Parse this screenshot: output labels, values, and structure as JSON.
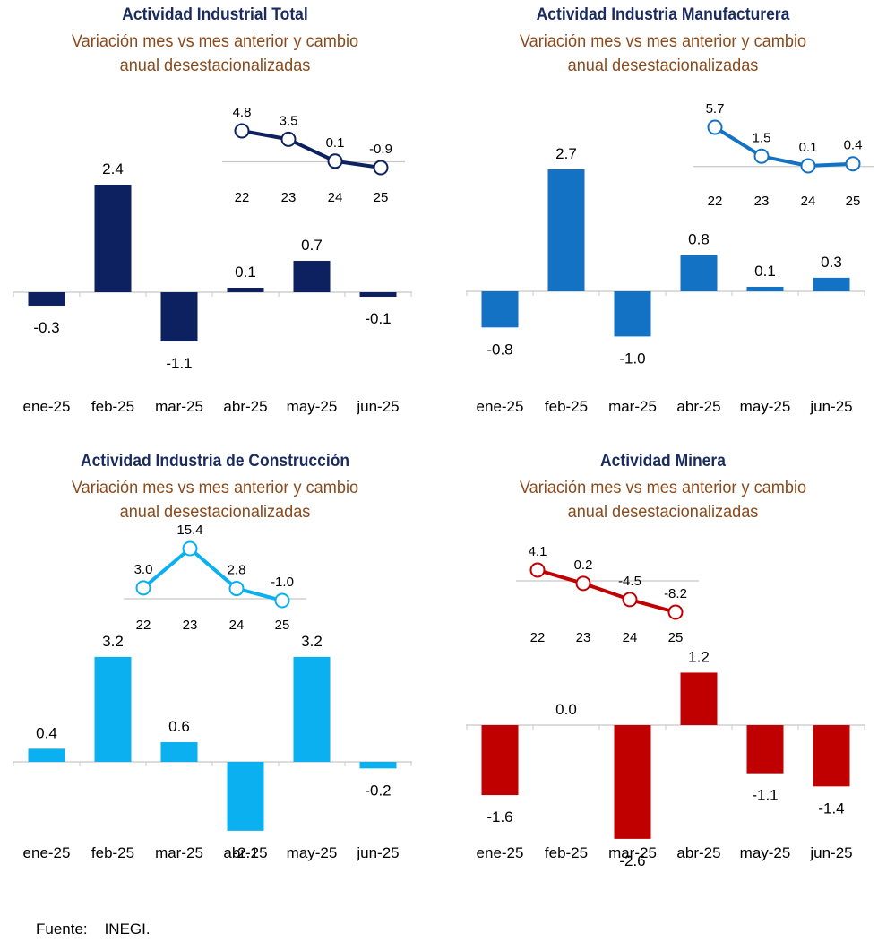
{
  "colors": {
    "title": "#1a2b5f",
    "subtitle": "#8a4a1c",
    "navy": "#0d2160",
    "blue": "#1472c4",
    "sky": "#0ab0ef",
    "red": "#c00000"
  },
  "source": {
    "label": "Fuente:",
    "value": "INEGI."
  },
  "chart_data": [
    {
      "type": "bar",
      "title": "Actividad Industrial Total",
      "subtitle_line1": "Variación mes vs mes anterior y cambio",
      "subtitle_line2": "anual desestacionalizadas",
      "categories": [
        "ene-25",
        "feb-25",
        "mar-25",
        "abr-25",
        "may-25",
        "jun-25"
      ],
      "values": [
        -0.3,
        2.4,
        -1.1,
        0.1,
        0.7,
        -0.1
      ],
      "labels": [
        "-0.3",
        "2.4",
        "-1.1",
        "0.1",
        "0.7",
        "-0.1"
      ],
      "color": "navy",
      "inset": {
        "type": "line",
        "categories": [
          "22",
          "23",
          "24",
          "25"
        ],
        "values": [
          4.8,
          3.5,
          0.1,
          -0.9
        ],
        "labels": [
          "4.8",
          "3.5",
          "0.1",
          "-0.9"
        ]
      }
    },
    {
      "type": "bar",
      "title": "Actividad Industria Manufacturera",
      "subtitle_line1": "Variación mes vs mes anterior y cambio",
      "subtitle_line2": "anual desestacionalizadas",
      "categories": [
        "ene-25",
        "feb-25",
        "mar-25",
        "abr-25",
        "may-25",
        "jun-25"
      ],
      "values": [
        -0.8,
        2.7,
        -1.0,
        0.8,
        0.1,
        0.3
      ],
      "labels": [
        "-0.8",
        "2.7",
        "-1.0",
        "0.8",
        "0.1",
        "0.3"
      ],
      "color": "blue",
      "inset": {
        "type": "line",
        "categories": [
          "22",
          "23",
          "24",
          "25"
        ],
        "values": [
          5.7,
          1.5,
          0.1,
          0.4
        ],
        "labels": [
          "5.7",
          "1.5",
          "0.1",
          "0.4"
        ]
      }
    },
    {
      "type": "bar",
      "title": "Actividad Industria de Construcción",
      "subtitle_line1": "Variación mes vs mes anterior y cambio",
      "subtitle_line2": "anual desestacionalizadas",
      "categories": [
        "ene-25",
        "feb-25",
        "mar-25",
        "abr-25",
        "may-25",
        "jun-25"
      ],
      "values": [
        0.4,
        3.2,
        0.6,
        -2.1,
        3.2,
        -0.2
      ],
      "labels": [
        "0.4",
        "3.2",
        "0.6",
        "-2.1",
        "3.2",
        "-0.2"
      ],
      "color": "sky",
      "inset": {
        "type": "line",
        "categories": [
          "22",
          "23",
          "24",
          "25"
        ],
        "values": [
          3.0,
          15.4,
          2.8,
          -1.0
        ],
        "labels": [
          "3.0",
          "15.4",
          "2.8",
          "-1.0"
        ]
      }
    },
    {
      "type": "bar",
      "title": "Actividad Minera",
      "subtitle_line1": "Variación mes vs mes anterior y cambio",
      "subtitle_line2": "anual desestacionalizadas",
      "categories": [
        "ene-25",
        "feb-25",
        "mar-25",
        "abr-25",
        "may-25",
        "jun-25"
      ],
      "values": [
        -1.6,
        0.0,
        -2.6,
        1.2,
        -1.1,
        -1.4
      ],
      "labels": [
        "-1.6",
        "0.0",
        "-2.6",
        "1.2",
        "-1.1",
        "-1.4"
      ],
      "color": "red",
      "inset": {
        "type": "line",
        "categories": [
          "22",
          "23",
          "24",
          "25"
        ],
        "values": [
          4.1,
          0.2,
          -4.5,
          -8.2
        ],
        "labels": [
          "4.1",
          "0.2",
          "-4.5",
          "-8.2"
        ]
      }
    }
  ]
}
